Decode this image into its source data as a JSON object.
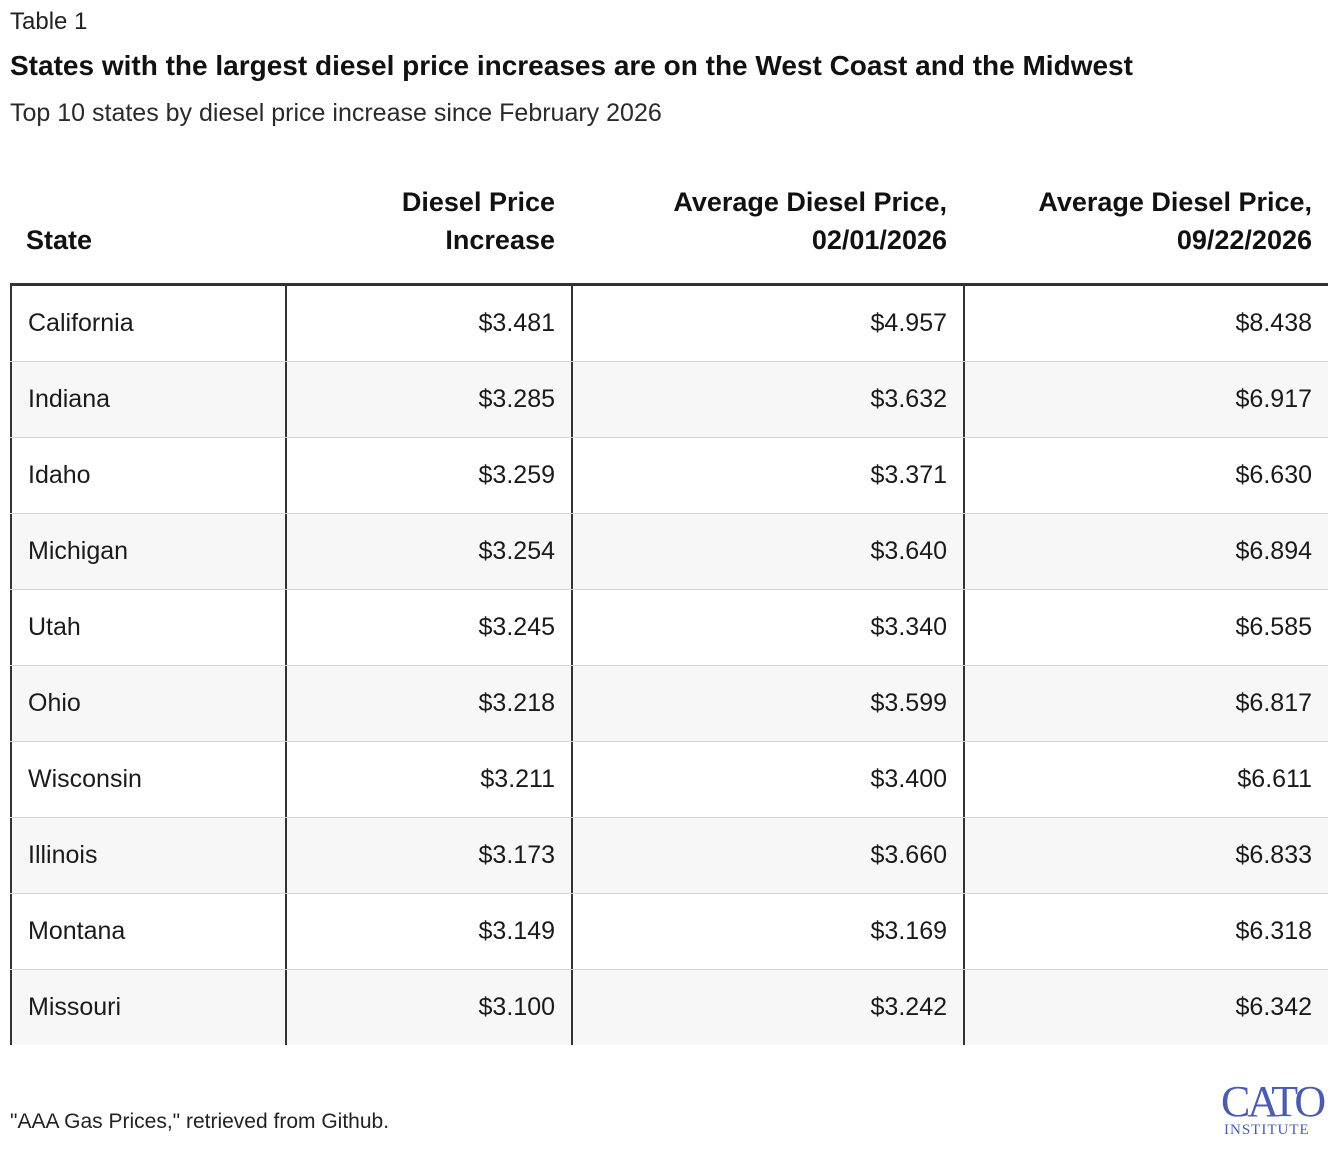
{
  "table_label": "Table 1",
  "title": "States with the largest diesel price increases are on the West Coast and the Midwest",
  "subtitle": "Top 10 states by diesel price increase since February 2026",
  "columns": [
    {
      "line1": "",
      "line2": "State"
    },
    {
      "line1": "Diesel Price",
      "line2": "Increase"
    },
    {
      "line1": "Average Diesel Price,",
      "line2": "02/01/2026"
    },
    {
      "line1": "Average Diesel Price,",
      "line2": "09/22/2026"
    }
  ],
  "rows": [
    {
      "state": "California",
      "increase": "$3.481",
      "price_feb": "$4.957",
      "price_sep": "$8.438"
    },
    {
      "state": "Indiana",
      "increase": "$3.285",
      "price_feb": "$3.632",
      "price_sep": "$6.917"
    },
    {
      "state": "Idaho",
      "increase": "$3.259",
      "price_feb": "$3.371",
      "price_sep": "$6.630"
    },
    {
      "state": "Michigan",
      "increase": "$3.254",
      "price_feb": "$3.640",
      "price_sep": "$6.894"
    },
    {
      "state": "Utah",
      "increase": "$3.245",
      "price_feb": "$3.340",
      "price_sep": "$6.585"
    },
    {
      "state": "Ohio",
      "increase": "$3.218",
      "price_feb": "$3.599",
      "price_sep": "$6.817"
    },
    {
      "state": "Wisconsin",
      "increase": "$3.211",
      "price_feb": "$3.400",
      "price_sep": "$6.611"
    },
    {
      "state": "Illinois",
      "increase": "$3.173",
      "price_feb": "$3.660",
      "price_sep": "$6.833"
    },
    {
      "state": "Montana",
      "increase": "$3.149",
      "price_feb": "$3.169",
      "price_sep": "$6.318"
    },
    {
      "state": "Missouri",
      "increase": "$3.100",
      "price_feb": "$3.242",
      "price_sep": "$6.342"
    }
  ],
  "source": "\"AAA Gas Prices,\" retrieved from Github.",
  "logo": {
    "main": "CATO",
    "sub": "INSTITUTE"
  },
  "colors": {
    "rule": "#333333",
    "alt_row": "#f7f7f7",
    "logo": "#4a5bb0"
  }
}
